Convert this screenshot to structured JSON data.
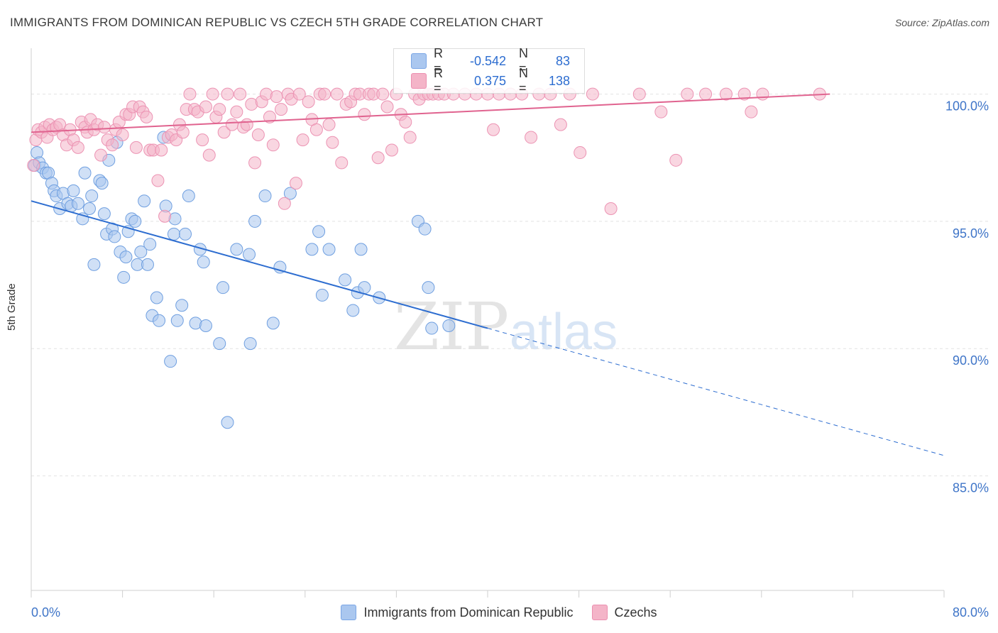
{
  "title": "IMMIGRANTS FROM DOMINICAN REPUBLIC VS CZECH 5TH GRADE CORRELATION CHART",
  "source": "Source: ZipAtlas.com",
  "watermark": {
    "zip": "ZIP",
    "atlas": "atlas"
  },
  "colors": {
    "blue": "#2d6dd0",
    "blue_fill": "#aac7ef",
    "pink": "#e0638f",
    "pink_fill": "#f4b4c8",
    "grid": "#e2e2e2",
    "tick_text": "#3f75c8"
  },
  "stats": [
    {
      "series": "Immigrants from Dominican Republic",
      "r_label": "R =",
      "r": "-0.542",
      "n_label": "N =",
      "n": "83",
      "color": "#aac7ef"
    },
    {
      "series": "Czechs",
      "r_label": "R =",
      "r": "0.375",
      "n_label": "N =",
      "n": "138",
      "color": "#f4b4c8"
    }
  ],
  "chart_data": {
    "type": "scatter",
    "title": "IMMIGRANTS FROM DOMINICAN REPUBLIC VS CZECH 5TH GRADE CORRELATION CHART",
    "xlabel": "",
    "ylabel": "5th Grade",
    "xlim": [
      0,
      80
    ],
    "ylim": [
      80.5,
      101.8
    ],
    "x_tick_labels": [
      "0.0%",
      "80.0%"
    ],
    "y_ticks": [
      85,
      90,
      95,
      100
    ],
    "y_tick_labels": [
      "85.0%",
      "90.0%",
      "95.0%",
      "100.0%"
    ],
    "grid": true,
    "legend_position": "bottom-center",
    "series": [
      {
        "name": "Immigrants from Dominican Republic",
        "color": "#2d6dd0",
        "points": [
          [
            0.3,
            97.2
          ],
          [
            0.5,
            97.7
          ],
          [
            0.7,
            97.3
          ],
          [
            1,
            97.1
          ],
          [
            1.3,
            96.9
          ],
          [
            1.5,
            96.9
          ],
          [
            1.8,
            96.5
          ],
          [
            2,
            96.2
          ],
          [
            2.2,
            96.0
          ],
          [
            2.5,
            95.5
          ],
          [
            2.8,
            96.1
          ],
          [
            3.2,
            95.7
          ],
          [
            3.5,
            95.6
          ],
          [
            3.7,
            96.2
          ],
          [
            4.1,
            95.7
          ],
          [
            4.5,
            95.1
          ],
          [
            4.7,
            96.9
          ],
          [
            5.1,
            95.5
          ],
          [
            5.3,
            96.0
          ],
          [
            5.5,
            93.3
          ],
          [
            6,
            96.6
          ],
          [
            6.2,
            96.5
          ],
          [
            6.4,
            95.3
          ],
          [
            6.6,
            94.5
          ],
          [
            6.8,
            97.4
          ],
          [
            7.1,
            94.7
          ],
          [
            7.3,
            94.4
          ],
          [
            7.5,
            98.1
          ],
          [
            7.8,
            93.8
          ],
          [
            8.1,
            92.8
          ],
          [
            8.3,
            93.6
          ],
          [
            8.5,
            94.6
          ],
          [
            8.8,
            95.1
          ],
          [
            9.1,
            95.0
          ],
          [
            9.3,
            93.3
          ],
          [
            9.6,
            93.8
          ],
          [
            9.9,
            95.8
          ],
          [
            10.2,
            93.3
          ],
          [
            10.4,
            94.1
          ],
          [
            10.6,
            91.3
          ],
          [
            11,
            92.0
          ],
          [
            11.2,
            91.1
          ],
          [
            11.6,
            98.3
          ],
          [
            11.8,
            95.6
          ],
          [
            12.2,
            89.5
          ],
          [
            12.5,
            94.5
          ],
          [
            12.8,
            91.1
          ],
          [
            12.6,
            95.1
          ],
          [
            13.2,
            91.7
          ],
          [
            13.5,
            94.5
          ],
          [
            13.8,
            96.0
          ],
          [
            14.4,
            91.0
          ],
          [
            14.8,
            93.9
          ],
          [
            15.1,
            93.4
          ],
          [
            15.3,
            90.9
          ],
          [
            16.5,
            90.2
          ],
          [
            16.8,
            92.4
          ],
          [
            17.2,
            87.1
          ],
          [
            18,
            93.9
          ],
          [
            19.1,
            93.7
          ],
          [
            19.2,
            90.2
          ],
          [
            19.6,
            95.0
          ],
          [
            20.5,
            96.0
          ],
          [
            21.2,
            91.0
          ],
          [
            21.8,
            93.2
          ],
          [
            22.7,
            96.1
          ],
          [
            24.6,
            93.9
          ],
          [
            25.2,
            94.6
          ],
          [
            25.5,
            92.1
          ],
          [
            26.1,
            93.9
          ],
          [
            27.5,
            92.7
          ],
          [
            28.2,
            91.5
          ],
          [
            28.6,
            92.2
          ],
          [
            28.9,
            93.9
          ],
          [
            29.2,
            92.4
          ],
          [
            30.5,
            92.0
          ],
          [
            33.9,
            95.0
          ],
          [
            34.5,
            94.7
          ],
          [
            34.8,
            92.4
          ],
          [
            35.1,
            90.8
          ],
          [
            36.6,
            90.9
          ]
        ],
        "trend": {
          "x": [
            0,
            40,
            80
          ],
          "y": [
            95.8,
            90.8,
            85.8
          ]
        }
      },
      {
        "name": "Czechs",
        "color": "#e0638f",
        "points": [
          [
            0.2,
            97.2
          ],
          [
            0.4,
            98.2
          ],
          [
            0.6,
            98.6
          ],
          [
            0.9,
            98.5
          ],
          [
            1.2,
            98.7
          ],
          [
            1.4,
            98.3
          ],
          [
            1.6,
            98.8
          ],
          [
            1.9,
            98.6
          ],
          [
            2.2,
            98.7
          ],
          [
            2.5,
            98.8
          ],
          [
            2.8,
            98.4
          ],
          [
            3.1,
            98.0
          ],
          [
            3.4,
            98.6
          ],
          [
            3.7,
            98.2
          ],
          [
            4.1,
            97.9
          ],
          [
            4.4,
            98.9
          ],
          [
            4.7,
            98.7
          ],
          [
            4.9,
            98.5
          ],
          [
            5.2,
            99.0
          ],
          [
            5.5,
            98.6
          ],
          [
            5.8,
            98.8
          ],
          [
            6.1,
            97.6
          ],
          [
            6.4,
            98.7
          ],
          [
            6.7,
            98.2
          ],
          [
            7.1,
            98.0
          ],
          [
            7.4,
            98.6
          ],
          [
            7.7,
            98.9
          ],
          [
            8,
            98.4
          ],
          [
            8.3,
            99.2
          ],
          [
            8.6,
            99.2
          ],
          [
            8.9,
            99.5
          ],
          [
            9.2,
            97.9
          ],
          [
            9.5,
            99.5
          ],
          [
            9.8,
            99.3
          ],
          [
            10.1,
            99.1
          ],
          [
            10.4,
            97.8
          ],
          [
            10.7,
            97.8
          ],
          [
            11.1,
            96.6
          ],
          [
            11.4,
            97.8
          ],
          [
            11.7,
            95.2
          ],
          [
            12,
            98.3
          ],
          [
            12.3,
            98.4
          ],
          [
            12.7,
            98.2
          ],
          [
            13,
            98.8
          ],
          [
            13.3,
            98.5
          ],
          [
            13.6,
            99.4
          ],
          [
            13.9,
            100.0
          ],
          [
            14.3,
            99.4
          ],
          [
            14.6,
            99.3
          ],
          [
            15,
            98.2
          ],
          [
            15.3,
            99.5
          ],
          [
            15.6,
            97.6
          ],
          [
            15.9,
            100.0
          ],
          [
            16.2,
            99.1
          ],
          [
            16.5,
            99.4
          ],
          [
            16.9,
            98.5
          ],
          [
            17.2,
            100.0
          ],
          [
            17.6,
            98.8
          ],
          [
            18,
            99.3
          ],
          [
            18.3,
            100.0
          ],
          [
            18.6,
            98.7
          ],
          [
            18.9,
            98.8
          ],
          [
            19.3,
            99.6
          ],
          [
            19.6,
            97.3
          ],
          [
            19.9,
            98.4
          ],
          [
            20.2,
            99.7
          ],
          [
            20.6,
            100.0
          ],
          [
            20.9,
            99.1
          ],
          [
            21.2,
            98.0
          ],
          [
            21.5,
            99.9
          ],
          [
            21.9,
            99.4
          ],
          [
            22.2,
            95.7
          ],
          [
            22.5,
            100.0
          ],
          [
            22.8,
            99.8
          ],
          [
            23.2,
            96.5
          ],
          [
            23.5,
            100.0
          ],
          [
            23.8,
            98.2
          ],
          [
            24.3,
            99.7
          ],
          [
            24.6,
            99.0
          ],
          [
            25,
            98.6
          ],
          [
            25.3,
            100.0
          ],
          [
            25.7,
            100.0
          ],
          [
            26.1,
            98.8
          ],
          [
            26.4,
            98.1
          ],
          [
            26.8,
            100.0
          ],
          [
            27.2,
            97.3
          ],
          [
            27.6,
            99.6
          ],
          [
            28,
            99.7
          ],
          [
            28.4,
            100.0
          ],
          [
            28.8,
            100.0
          ],
          [
            29.2,
            99.2
          ],
          [
            29.6,
            100.0
          ],
          [
            30,
            100.0
          ],
          [
            30.4,
            97.5
          ],
          [
            30.8,
            100.0
          ],
          [
            31.2,
            99.5
          ],
          [
            31.6,
            97.8
          ],
          [
            32,
            100.0
          ],
          [
            32.4,
            99.2
          ],
          [
            32.8,
            98.9
          ],
          [
            33.2,
            98.3
          ],
          [
            33.6,
            100.0
          ],
          [
            34,
            99.8
          ],
          [
            34.4,
            100.0
          ],
          [
            34.8,
            100.0
          ],
          [
            35.2,
            100.0
          ],
          [
            35.7,
            100.0
          ],
          [
            36.2,
            100.0
          ],
          [
            37,
            100.0
          ],
          [
            38,
            100.0
          ],
          [
            39,
            100.0
          ],
          [
            40,
            100.0
          ],
          [
            40.5,
            98.6
          ],
          [
            41,
            100.0
          ],
          [
            42,
            100.0
          ],
          [
            43,
            100.0
          ],
          [
            43.8,
            98.3
          ],
          [
            44.5,
            100.0
          ],
          [
            45.5,
            100.0
          ],
          [
            46.4,
            98.8
          ],
          [
            47.2,
            100.0
          ],
          [
            48.1,
            97.7
          ],
          [
            49.2,
            100.0
          ],
          [
            50.8,
            95.5
          ],
          [
            53.3,
            100.0
          ],
          [
            55.2,
            99.3
          ],
          [
            56.5,
            97.4
          ],
          [
            57.5,
            100.0
          ],
          [
            59.1,
            100.0
          ],
          [
            60.9,
            100.0
          ],
          [
            62.5,
            100.0
          ],
          [
            63.1,
            99.3
          ],
          [
            64.1,
            100.0
          ],
          [
            69.1,
            100.0
          ]
        ],
        "trend": {
          "x": [
            0,
            70
          ],
          "y": [
            98.5,
            100.0
          ]
        }
      }
    ]
  }
}
